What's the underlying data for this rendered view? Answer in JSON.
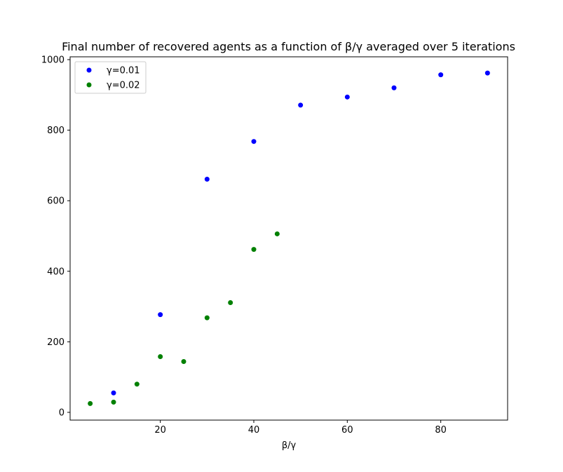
{
  "chart_data": {
    "type": "scatter",
    "title": "Final number of recovered agents as a function of β/γ averaged over 5 iterations",
    "xlabel": "β/γ",
    "ylabel": "",
    "xlim": [
      0.7,
      94.3
    ],
    "ylim": [
      -22,
      1008
    ],
    "xticks": [
      20,
      40,
      60,
      80
    ],
    "yticks": [
      0,
      200,
      400,
      600,
      800,
      1000
    ],
    "grid": false,
    "legend_position": "top-left",
    "series": [
      {
        "name": "γ=0.01",
        "color": "#0000ff",
        "x": [
          10,
          20,
          30,
          40,
          50,
          60,
          70,
          80,
          90
        ],
        "y": [
          55,
          277,
          661,
          768,
          871,
          894,
          920,
          957,
          962
        ]
      },
      {
        "name": "γ=0.02",
        "color": "#008000",
        "x": [
          5,
          10,
          15,
          20,
          25,
          30,
          35,
          40,
          45
        ],
        "y": [
          25,
          29,
          80,
          158,
          144,
          268,
          311,
          462,
          506
        ]
      }
    ]
  }
}
